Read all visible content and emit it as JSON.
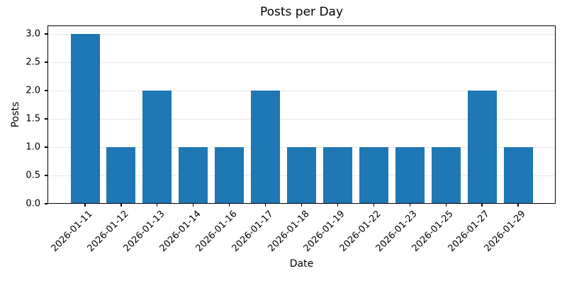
{
  "chart_data": {
    "type": "bar",
    "title": "Posts per Day",
    "xlabel": "Date",
    "ylabel": "Posts",
    "categories": [
      "2026-01-11",
      "2026-01-12",
      "2026-01-13",
      "2026-01-14",
      "2026-01-16",
      "2026-01-17",
      "2026-01-18",
      "2026-01-19",
      "2026-01-22",
      "2026-01-23",
      "2026-01-25",
      "2026-01-27",
      "2026-01-29"
    ],
    "values": [
      3,
      1,
      2,
      1,
      1,
      2,
      1,
      1,
      1,
      1,
      1,
      2,
      1
    ],
    "ytick_labels": [
      "0.0",
      "0.5",
      "1.0",
      "1.5",
      "2.0",
      "2.5",
      "3.0"
    ],
    "ytick_values": [
      0,
      0.5,
      1,
      1.5,
      2,
      2.5,
      3
    ],
    "ylim": [
      0,
      3.15
    ],
    "bar_color": "#1f77b4",
    "grid": "horizontal",
    "grid_color": "#e7e7e7",
    "legend": "none",
    "x_tick_rotation_deg": 45
  }
}
